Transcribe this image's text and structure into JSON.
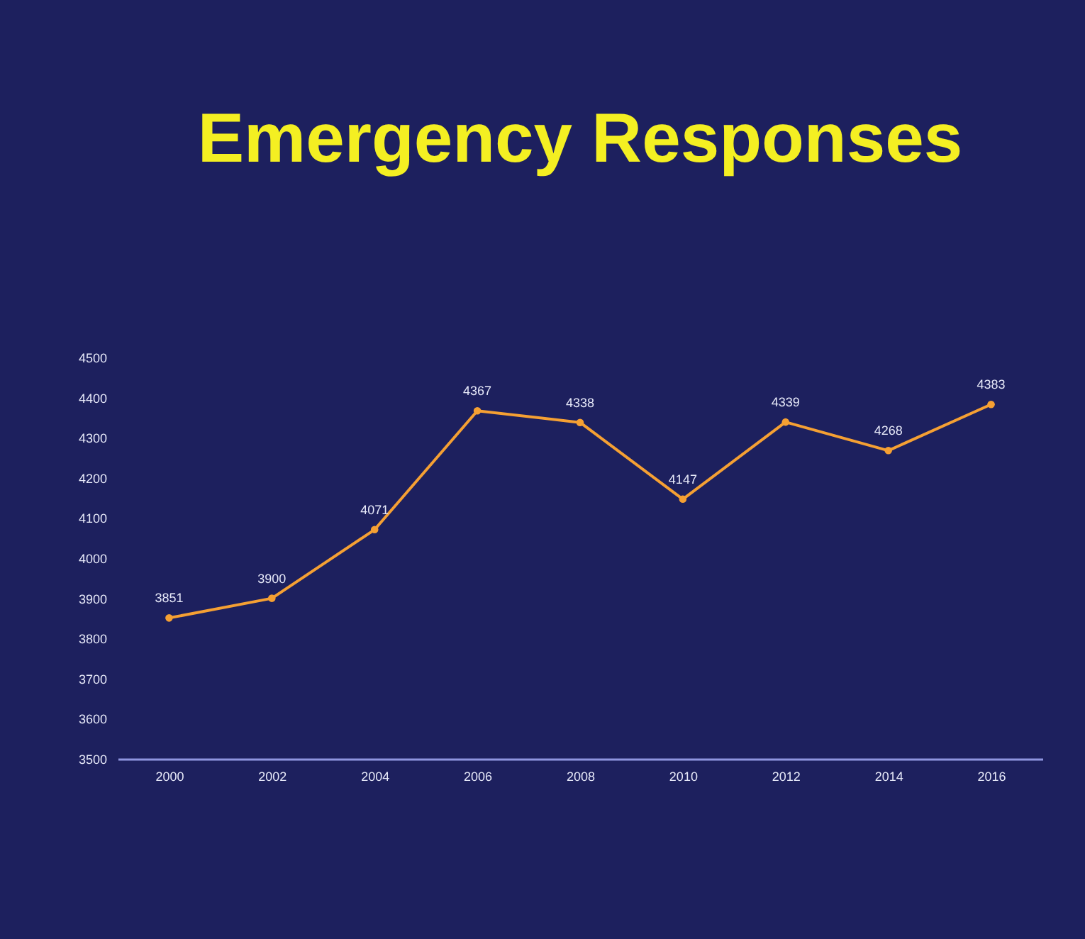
{
  "chart_data": {
    "type": "line",
    "title": "Emergency Responses",
    "categories": [
      "2000",
      "2002",
      "2004",
      "2006",
      "2008",
      "2010",
      "2012",
      "2014",
      "2016"
    ],
    "series": [
      {
        "color": "#f5a033",
        "values": [
          3851,
          3900,
          4071,
          4367,
          4338,
          4147,
          4339,
          4268,
          4383
        ]
      }
    ],
    "ylim": [
      3500,
      4500
    ],
    "yticks": [
      3500,
      3600,
      3700,
      3800,
      3900,
      4000,
      4100,
      4200,
      4300,
      4400,
      4500
    ],
    "grid": false,
    "marker": "circle",
    "line_style": "solid",
    "data_labels": true
  }
}
